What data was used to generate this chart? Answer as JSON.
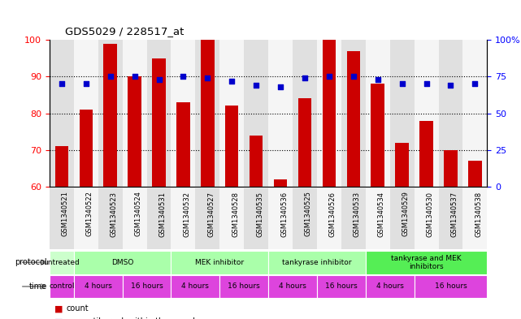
{
  "title": "GDS5029 / 228517_at",
  "samples": [
    "GSM1340521",
    "GSM1340522",
    "GSM1340523",
    "GSM1340524",
    "GSM1340531",
    "GSM1340532",
    "GSM1340527",
    "GSM1340528",
    "GSM1340535",
    "GSM1340536",
    "GSM1340525",
    "GSM1340526",
    "GSM1340533",
    "GSM1340534",
    "GSM1340529",
    "GSM1340530",
    "GSM1340537",
    "GSM1340538"
  ],
  "bar_values": [
    71,
    81,
    99,
    90,
    95,
    83,
    100,
    82,
    74,
    62,
    84,
    100,
    97,
    88,
    72,
    78,
    70,
    67
  ],
  "dot_values_pct": [
    70,
    70,
    75,
    75,
    73,
    75,
    74,
    72,
    69,
    68,
    74,
    75,
    75,
    73,
    70,
    70,
    69,
    70
  ],
  "ylim_left": [
    60,
    100
  ],
  "ylim_right": [
    0,
    100
  ],
  "yticks_left": [
    60,
    70,
    80,
    90,
    100
  ],
  "yticks_right": [
    0,
    25,
    50,
    75,
    100
  ],
  "ytick_labels_right": [
    "0",
    "25",
    "50",
    "75",
    "100%"
  ],
  "bar_color": "#cc0000",
  "dot_color": "#0000cc",
  "bg_color": "#ffffff",
  "sample_bg_colors": [
    "#e0e0e0",
    "#f5f5f5",
    "#e0e0e0",
    "#f5f5f5",
    "#e0e0e0",
    "#f5f5f5",
    "#e0e0e0",
    "#f5f5f5",
    "#e0e0e0",
    "#f5f5f5",
    "#e0e0e0",
    "#f5f5f5",
    "#e0e0e0",
    "#f5f5f5",
    "#e0e0e0",
    "#f5f5f5",
    "#e0e0e0",
    "#f5f5f5"
  ],
  "proto_groups": [
    {
      "text": "untreated",
      "start": 0,
      "end": 1,
      "color": "#ccffcc"
    },
    {
      "text": "DMSO",
      "start": 1,
      "end": 5,
      "color": "#aaffaa"
    },
    {
      "text": "MEK inhibitor",
      "start": 5,
      "end": 9,
      "color": "#aaffaa"
    },
    {
      "text": "tankyrase inhibitor",
      "start": 9,
      "end": 13,
      "color": "#aaffaa"
    },
    {
      "text": "tankyrase and MEK\ninhibitors",
      "start": 13,
      "end": 18,
      "color": "#55ee55"
    }
  ],
  "time_groups": [
    {
      "text": "control",
      "start": 0,
      "end": 1
    },
    {
      "text": "4 hours",
      "start": 1,
      "end": 3
    },
    {
      "text": "16 hours",
      "start": 3,
      "end": 5
    },
    {
      "text": "4 hours",
      "start": 5,
      "end": 7
    },
    {
      "text": "16 hours",
      "start": 7,
      "end": 9
    },
    {
      "text": "4 hours",
      "start": 9,
      "end": 11
    },
    {
      "text": "16 hours",
      "start": 11,
      "end": 13
    },
    {
      "text": "4 hours",
      "start": 13,
      "end": 15
    },
    {
      "text": "16 hours",
      "start": 15,
      "end": 18
    }
  ],
  "time_color": "#dd44dd",
  "left_label_color": "#888888",
  "arrow_color": "#888888"
}
